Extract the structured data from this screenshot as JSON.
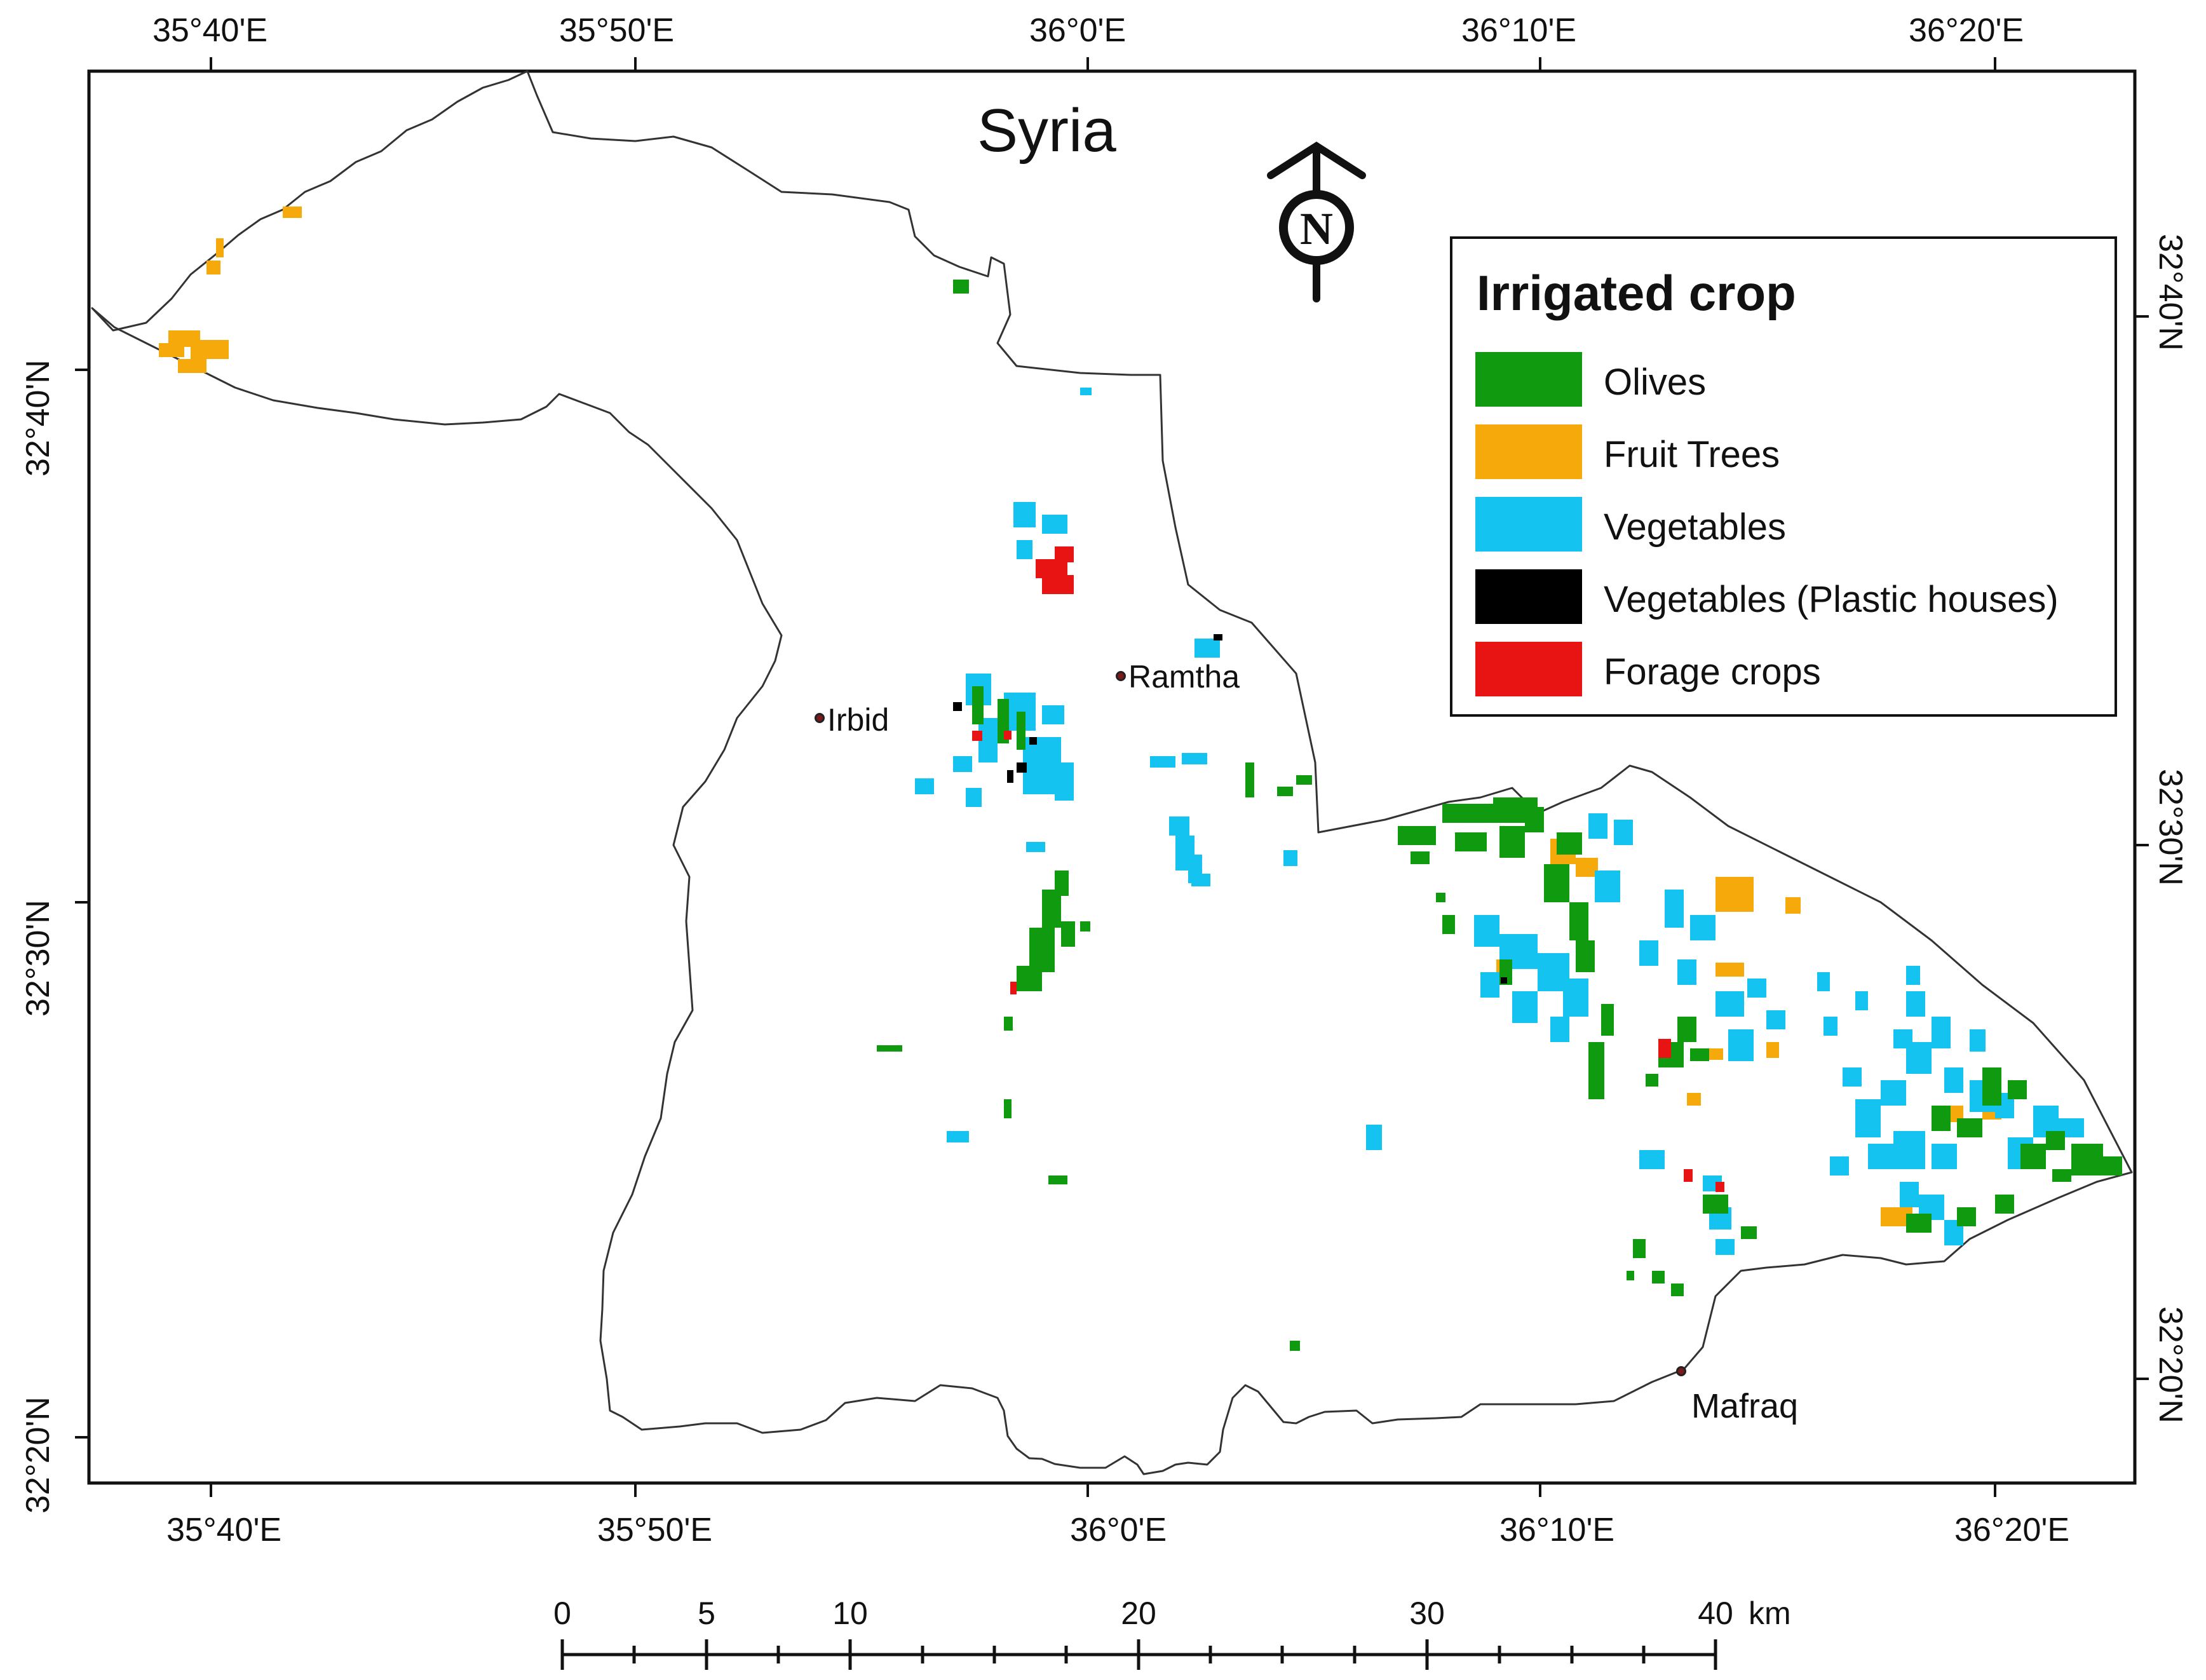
{
  "map": {
    "title": "Syria",
    "north_letter": "N",
    "lon_labels": [
      "35°40'E",
      "35°50'E",
      "36°0'E",
      "36°10'E",
      "36°20'E"
    ],
    "lat_labels": [
      "32°40'N",
      "32°30'N",
      "32°20'N"
    ],
    "cities": [
      {
        "name": "Irbid"
      },
      {
        "name": "Ramtha"
      },
      {
        "name": "Mafraq"
      }
    ]
  },
  "legend": {
    "title": "Irrigated crop",
    "items": [
      {
        "label": "Olives",
        "color": "#109a10"
      },
      {
        "label": "Fruit Trees",
        "color": "#f5a90a"
      },
      {
        "label": "Vegetables",
        "color": "#14c3ef"
      },
      {
        "label": "Vegetables (Plastic houses)",
        "color": "#000000"
      },
      {
        "label": "Forage crops",
        "color": "#e81414"
      }
    ]
  },
  "scale_bar": {
    "ticks": [
      "0",
      "5",
      "10",
      "20",
      "30",
      "40"
    ],
    "unit": "km"
  }
}
